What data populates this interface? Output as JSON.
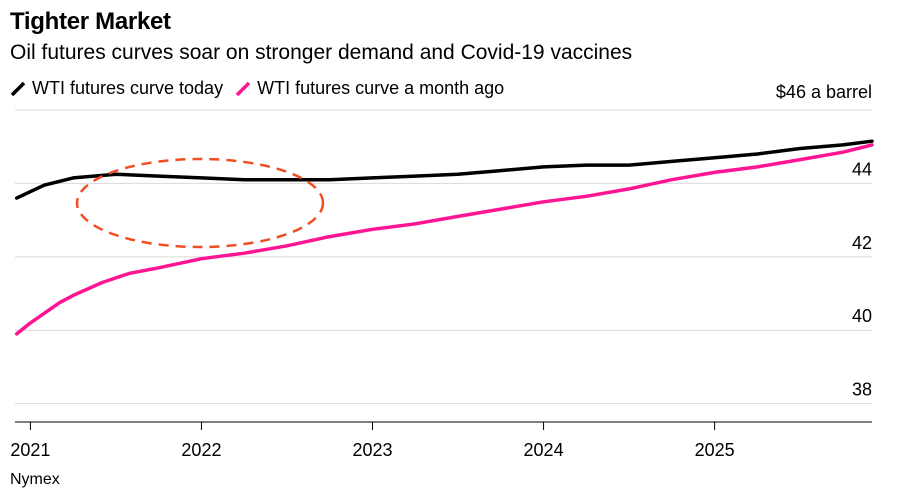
{
  "chart_data": {
    "type": "line",
    "title": "Tighter Market",
    "subtitle": "Oil futures curves soar on stronger demand and Covid-19 vaccines",
    "source": "Nymex",
    "y_unit_label": "$46 a barrel",
    "ylim": [
      37.5,
      46
    ],
    "yticks": [
      38,
      40,
      42,
      44,
      46
    ],
    "ytick_labels": [
      "38",
      "40",
      "42",
      "44",
      ""
    ],
    "xlim": [
      2020.91,
      2025.92
    ],
    "xticks": [
      2021,
      2022,
      2023,
      2024,
      2025
    ],
    "xtick_labels": [
      "2021",
      "2022",
      "2023",
      "2024",
      "2025"
    ],
    "grid": true,
    "legend_position": "top-left",
    "series": [
      {
        "name": "WTI futures curve today",
        "color": "#000000",
        "x": [
          2020.92,
          2021.08,
          2021.25,
          2021.5,
          2021.75,
          2022.0,
          2022.25,
          2022.5,
          2022.75,
          2023.0,
          2023.25,
          2023.5,
          2023.75,
          2024.0,
          2024.25,
          2024.5,
          2024.75,
          2025.0,
          2025.25,
          2025.5,
          2025.75,
          2025.92
        ],
        "y": [
          43.6,
          43.95,
          44.15,
          44.25,
          44.2,
          44.15,
          44.1,
          44.1,
          44.1,
          44.15,
          44.2,
          44.25,
          44.35,
          44.45,
          44.5,
          44.5,
          44.6,
          44.7,
          44.8,
          44.95,
          45.05,
          45.15
        ]
      },
      {
        "name": "WTI futures curve a month ago",
        "color": "#ff1493",
        "x": [
          2020.92,
          2021.0,
          2021.17,
          2021.25,
          2021.42,
          2021.58,
          2021.75,
          2022.0,
          2022.25,
          2022.5,
          2022.75,
          2023.0,
          2023.25,
          2023.5,
          2023.75,
          2024.0,
          2024.25,
          2024.5,
          2024.75,
          2025.0,
          2025.25,
          2025.5,
          2025.75,
          2025.92
        ],
        "y": [
          39.9,
          40.2,
          40.75,
          40.95,
          41.3,
          41.55,
          41.7,
          41.95,
          42.1,
          42.3,
          42.55,
          42.75,
          42.9,
          43.1,
          43.3,
          43.5,
          43.65,
          43.85,
          44.1,
          44.3,
          44.45,
          44.65,
          44.85,
          45.05
        ]
      }
    ]
  }
}
